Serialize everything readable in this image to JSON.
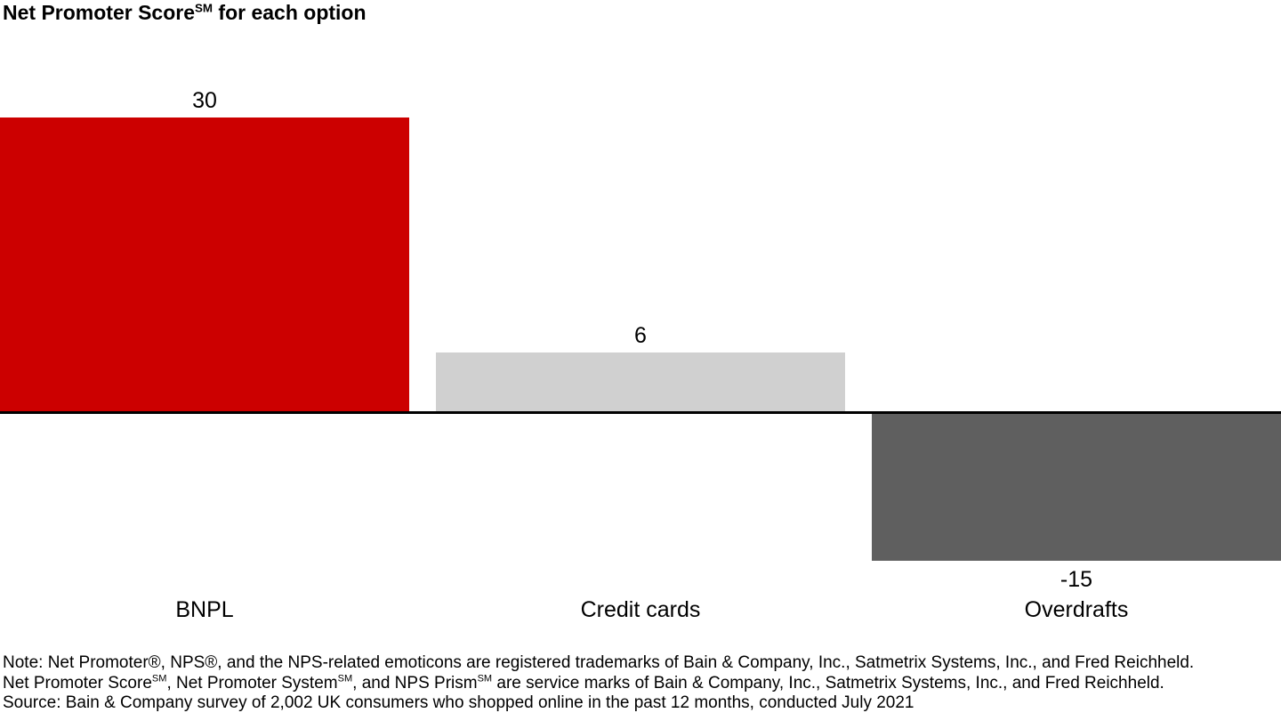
{
  "title": {
    "parts": [
      {
        "text": "Net Promoter Score"
      },
      {
        "text": "SM",
        "sup": true
      },
      {
        "text": " for each option"
      }
    ]
  },
  "chart_data": {
    "type": "bar",
    "title": "Net Promoter Score℠ for each option",
    "categories": [
      "BNPL",
      "Credit cards",
      "Overdrafts"
    ],
    "values": [
      30,
      6,
      -15
    ],
    "value_labels": [
      "30",
      "6",
      "-15"
    ],
    "bar_colors": [
      "#CC0000",
      "#D0D0D0",
      "#5F5F5F"
    ],
    "axis_color": "#000000",
    "xlabel": "",
    "ylabel": "",
    "ylim": [
      -15,
      30
    ],
    "baseline": 0,
    "grid": false,
    "legend": "none"
  },
  "footnotes": {
    "lines": [
      [
        {
          "text": "Note: Net Promoter®, NPS®, and the NPS-related emoticons are registered trademarks of Bain & Company, Inc., Satmetrix Systems, Inc., and Fred Reichheld."
        }
      ],
      [
        {
          "text": "Net Promoter Score"
        },
        {
          "text": "SM",
          "sup": true
        },
        {
          "text": ", Net Promoter System"
        },
        {
          "text": "SM",
          "sup": true
        },
        {
          "text": ", and NPS Prism"
        },
        {
          "text": "SM",
          "sup": true
        },
        {
          "text": " are service marks of Bain & Company, Inc., Satmetrix Systems, Inc., and Fred Reichheld."
        }
      ],
      [
        {
          "text": "Source: Bain & Company survey of 2,002 UK consumers who shopped online in the past 12 months, conducted July 2021"
        }
      ]
    ]
  }
}
